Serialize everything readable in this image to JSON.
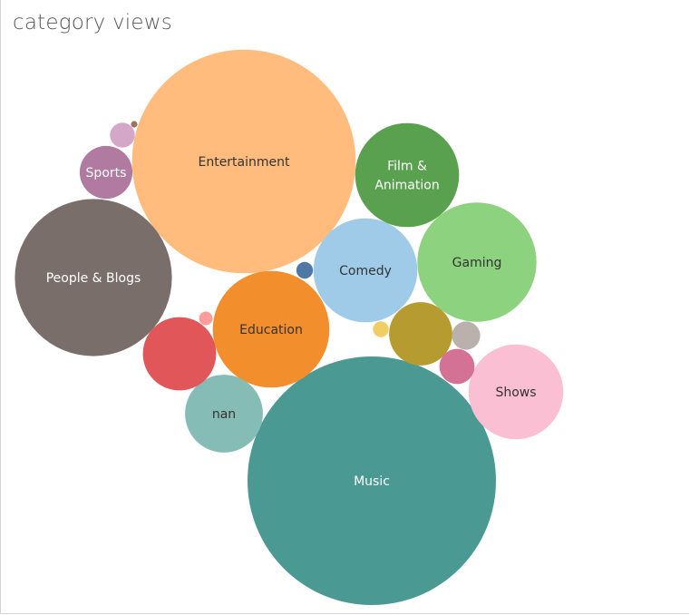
{
  "title": "category views",
  "chart_data": {
    "type": "bubble",
    "title": "category views",
    "measure": "views",
    "bubbles": [
      {
        "label": "Music",
        "size": 100,
        "color": "#4a9a93",
        "text_color": "#ffffff"
      },
      {
        "label": "Entertainment",
        "size": 81,
        "color": "#ffbc7c",
        "text_color": "#333333"
      },
      {
        "label": "People & Blogs",
        "size": 40,
        "color": "#7a6e6b",
        "text_color": "#ffffff"
      },
      {
        "label": "Gaming",
        "size": 23,
        "color": "#8dd27e",
        "text_color": "#333333"
      },
      {
        "label": "Education",
        "size": 22,
        "color": "#f28e2c",
        "text_color": "#333333"
      },
      {
        "label": "Comedy",
        "size": 17.5,
        "color": "#a0cbe8",
        "text_color": "#333333"
      },
      {
        "label": "Film & Animation",
        "lines": [
          "Film &",
          "Animation"
        ],
        "size": 17.5,
        "color": "#59a14f",
        "text_color": "#ffffff"
      },
      {
        "label": "Shows",
        "size": 14.5,
        "color": "#fabfd2",
        "text_color": "#333333"
      },
      {
        "label": "nan",
        "size": 9.8,
        "color": "#86bcb6",
        "text_color": "#333333"
      },
      {
        "label": "",
        "size": 8.7,
        "color": "#e15759",
        "text_color": "#ffffff"
      },
      {
        "label": "Sports",
        "size": 4.5,
        "color": "#b07aa1",
        "text_color": "#ffffff"
      },
      {
        "label": "",
        "size": 6.5,
        "color": "#b69b30",
        "text_color": "#ffffff"
      },
      {
        "label": "",
        "size": 2.0,
        "color": "#d37295",
        "text_color": "#ffffff"
      },
      {
        "label": "",
        "size": 1.3,
        "color": "#bab0ac",
        "text_color": "#ffffff"
      },
      {
        "label": "",
        "size": 1.0,
        "color": "#d4a6c8",
        "text_color": "#ffffff"
      },
      {
        "label": "",
        "size": 0.45,
        "color": "#4e79a7",
        "text_color": "#ffffff"
      },
      {
        "label": "",
        "size": 0.4,
        "color": "#f1ce63",
        "text_color": "#ffffff"
      },
      {
        "label": "",
        "size": 0.3,
        "color": "#ff9d9a",
        "text_color": "#ffffff"
      },
      {
        "label": "",
        "size": 0.07,
        "color": "#9c755f",
        "text_color": "#ffffff"
      }
    ]
  }
}
